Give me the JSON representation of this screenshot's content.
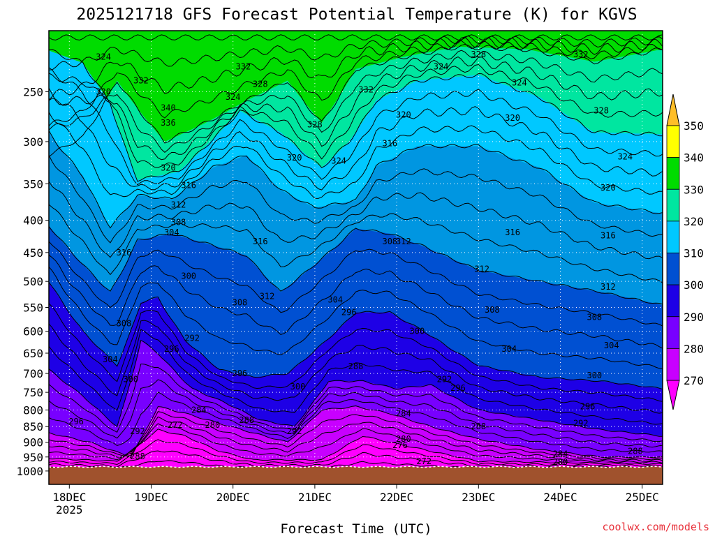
{
  "chart_data": {
    "type": "heatmap",
    "title": "2025121718 GFS Forecast Potential Temperature (K) for KGVS",
    "xlabel": "Forecast Time (UTC)",
    "ylabel": "",
    "x_ticks": [
      {
        "label": "18DEC",
        "sub": "2025",
        "t": 6
      },
      {
        "label": "19DEC",
        "sub": "",
        "t": 30
      },
      {
        "label": "20DEC",
        "sub": "",
        "t": 54
      },
      {
        "label": "21DEC",
        "sub": "",
        "t": 78
      },
      {
        "label": "22DEC",
        "sub": "",
        "t": 102
      },
      {
        "label": "23DEC",
        "sub": "",
        "t": 126
      },
      {
        "label": "24DEC",
        "sub": "",
        "t": 150
      },
      {
        "label": "25DEC",
        "sub": "",
        "t": 174
      }
    ],
    "x_range_hours": [
      0,
      180
    ],
    "y_ticks": [
      "250",
      "300",
      "350",
      "400",
      "450",
      "500",
      "550",
      "600",
      "650",
      "700",
      "750",
      "800",
      "850",
      "900",
      "950",
      "1000"
    ],
    "y_range_hPa": [
      200,
      1050
    ],
    "y_scale": "log-pressure",
    "grid": true,
    "units": "K",
    "colorbar": {
      "placement": "right",
      "levels": [
        "270",
        "280",
        "290",
        "300",
        "310",
        "320",
        "330",
        "340",
        "350"
      ],
      "colors": [
        "#ff00ff",
        "#c800ff",
        "#7800ff",
        "#1e00e6",
        "#0050d2",
        "#0096e1",
        "#00c8ff",
        "#00e6a0",
        "#00dc00",
        "#a0e632",
        "#ffff00",
        "#ffbe28"
      ]
    },
    "series": [
      {
        "name": "332",
        "values": [
          [
            0,
            315
          ],
          [
            10,
            295
          ],
          [
            20,
            240
          ],
          [
            34,
            300
          ],
          [
            46,
            280
          ],
          [
            58,
            258
          ],
          [
            70,
            240
          ],
          [
            80,
            280
          ],
          [
            90,
            230
          ],
          [
            104,
            220
          ],
          [
            120,
            212
          ],
          [
            140,
            214
          ],
          [
            160,
            224
          ],
          [
            180,
            214
          ]
        ]
      },
      {
        "name": "324",
        "values": [
          [
            0,
            215
          ],
          [
            10,
            225
          ],
          [
            18,
            260
          ],
          [
            26,
            345
          ],
          [
            38,
            335
          ],
          [
            46,
            305
          ],
          [
            56,
            268
          ],
          [
            68,
            290
          ],
          [
            80,
            330
          ],
          [
            88,
            300
          ],
          [
            96,
            258
          ],
          [
            108,
            240
          ],
          [
            126,
            235
          ],
          [
            144,
            255
          ],
          [
            160,
            290
          ],
          [
            180,
            292
          ]
        ]
      },
      {
        "name": "316",
        "values": [
          [
            0,
            290
          ],
          [
            10,
            340
          ],
          [
            18,
            410
          ],
          [
            26,
            365
          ],
          [
            36,
            370
          ],
          [
            48,
            330
          ],
          [
            58,
            315
          ],
          [
            68,
            358
          ],
          [
            78,
            382
          ],
          [
            90,
            372
          ],
          [
            96,
            328
          ],
          [
            108,
            305
          ],
          [
            126,
            305
          ],
          [
            144,
            330
          ],
          [
            160,
            375
          ],
          [
            180,
            390
          ]
        ]
      },
      {
        "name": "308",
        "values": [
          [
            0,
            408
          ],
          [
            10,
            470
          ],
          [
            18,
            520
          ],
          [
            26,
            430
          ],
          [
            36,
            420
          ],
          [
            48,
            438
          ],
          [
            58,
            455
          ],
          [
            68,
            520
          ],
          [
            78,
            470
          ],
          [
            90,
            412
          ],
          [
            100,
            420
          ],
          [
            110,
            440
          ],
          [
            126,
            480
          ],
          [
            144,
            500
          ],
          [
            162,
            520
          ],
          [
            180,
            545
          ]
        ]
      },
      {
        "name": "300",
        "values": [
          [
            0,
            500
          ],
          [
            10,
            600
          ],
          [
            20,
            680
          ],
          [
            27,
            540
          ],
          [
            32,
            530
          ],
          [
            40,
            620
          ],
          [
            50,
            690
          ],
          [
            60,
            710
          ],
          [
            70,
            700
          ],
          [
            80,
            630
          ],
          [
            90,
            560
          ],
          [
            100,
            560
          ],
          [
            110,
            600
          ],
          [
            126,
            680
          ],
          [
            144,
            710
          ],
          [
            162,
            720
          ],
          [
            180,
            740
          ]
        ]
      },
      {
        "name": "292",
        "values": [
          [
            0,
            690
          ],
          [
            10,
            760
          ],
          [
            20,
            850
          ],
          [
            27,
            620
          ],
          [
            32,
            650
          ],
          [
            42,
            740
          ],
          [
            52,
            780
          ],
          [
            62,
            830
          ],
          [
            72,
            850
          ],
          [
            82,
            720
          ],
          [
            92,
            720
          ],
          [
            102,
            740
          ],
          [
            112,
            730
          ],
          [
            126,
            800
          ],
          [
            144,
            830
          ],
          [
            162,
            860
          ],
          [
            180,
            880
          ]
        ]
      },
      {
        "name": "284",
        "values": [
          [
            0,
            870
          ],
          [
            12,
            900
          ],
          [
            24,
            950
          ],
          [
            32,
            790
          ],
          [
            40,
            810
          ],
          [
            50,
            840
          ],
          [
            60,
            870
          ],
          [
            70,
            900
          ],
          [
            80,
            800
          ],
          [
            90,
            790
          ],
          [
            100,
            810
          ],
          [
            112,
            850
          ],
          [
            126,
            890
          ],
          [
            144,
            925
          ],
          [
            162,
            950
          ],
          [
            180,
            950
          ]
        ]
      },
      {
        "name": "276",
        "values": [
          [
            0,
            955
          ],
          [
            20,
            965
          ],
          [
            32,
            860
          ],
          [
            40,
            880
          ],
          [
            50,
            930
          ],
          [
            60,
            960
          ],
          [
            80,
            960
          ],
          [
            92,
            880
          ],
          [
            100,
            900
          ],
          [
            112,
            930
          ],
          [
            126,
            965
          ],
          [
            180,
            975
          ]
        ]
      }
    ],
    "contour_labels": [
      {
        "text": "324",
        "t": 16,
        "p": 220
      },
      {
        "text": "320",
        "t": 16,
        "p": 250
      },
      {
        "text": "332",
        "t": 27,
        "p": 240
      },
      {
        "text": "340",
        "t": 35,
        "p": 265
      },
      {
        "text": "336",
        "t": 35,
        "p": 280
      },
      {
        "text": "332",
        "t": 57,
        "p": 228
      },
      {
        "text": "328",
        "t": 62,
        "p": 243
      },
      {
        "text": "324",
        "t": 54,
        "p": 255
      },
      {
        "text": "328",
        "t": 78,
        "p": 282
      },
      {
        "text": "320",
        "t": 72,
        "p": 318
      },
      {
        "text": "324",
        "t": 85,
        "p": 322
      },
      {
        "text": "332",
        "t": 93,
        "p": 248
      },
      {
        "text": "320",
        "t": 104,
        "p": 272
      },
      {
        "text": "316",
        "t": 100,
        "p": 302
      },
      {
        "text": "324",
        "t": 115,
        "p": 228
      },
      {
        "text": "328",
        "t": 126,
        "p": 218
      },
      {
        "text": "324",
        "t": 138,
        "p": 242
      },
      {
        "text": "332",
        "t": 156,
        "p": 218
      },
      {
        "text": "320",
        "t": 136,
        "p": 275
      },
      {
        "text": "328",
        "t": 162,
        "p": 268
      },
      {
        "text": "324",
        "t": 169,
        "p": 317
      },
      {
        "text": "320",
        "t": 164,
        "p": 355
      },
      {
        "text": "320",
        "t": 35,
        "p": 330
      },
      {
        "text": "316",
        "t": 41,
        "p": 352
      },
      {
        "text": "312",
        "t": 38,
        "p": 378
      },
      {
        "text": "308",
        "t": 38,
        "p": 403
      },
      {
        "text": "304",
        "t": 36,
        "p": 418
      },
      {
        "text": "316",
        "t": 22,
        "p": 450
      },
      {
        "text": "316",
        "t": 62,
        "p": 432
      },
      {
        "text": "308",
        "t": 100,
        "p": 432
      },
      {
        "text": "312",
        "t": 104,
        "p": 432
      },
      {
        "text": "316",
        "t": 136,
        "p": 418
      },
      {
        "text": "316",
        "t": 164,
        "p": 423
      },
      {
        "text": "312",
        "t": 127,
        "p": 478
      },
      {
        "text": "312",
        "t": 164,
        "p": 510
      },
      {
        "text": "300",
        "t": 41,
        "p": 490
      },
      {
        "text": "308",
        "t": 56,
        "p": 540
      },
      {
        "text": "312",
        "t": 64,
        "p": 528
      },
      {
        "text": "304",
        "t": 84,
        "p": 535
      },
      {
        "text": "296",
        "t": 88,
        "p": 560
      },
      {
        "text": "308",
        "t": 130,
        "p": 555
      },
      {
        "text": "308",
        "t": 160,
        "p": 570
      },
      {
        "text": "308",
        "t": 22,
        "p": 583
      },
      {
        "text": "300",
        "t": 108,
        "p": 600
      },
      {
        "text": "304",
        "t": 18,
        "p": 665
      },
      {
        "text": "292",
        "t": 42,
        "p": 615
      },
      {
        "text": "296",
        "t": 36,
        "p": 640
      },
      {
        "text": "304",
        "t": 135,
        "p": 640
      },
      {
        "text": "304",
        "t": 165,
        "p": 632
      },
      {
        "text": "296",
        "t": 56,
        "p": 700
      },
      {
        "text": "288",
        "t": 90,
        "p": 682
      },
      {
        "text": "300",
        "t": 24,
        "p": 715
      },
      {
        "text": "300",
        "t": 73,
        "p": 735
      },
      {
        "text": "292",
        "t": 116,
        "p": 715
      },
      {
        "text": "296",
        "t": 120,
        "p": 738
      },
      {
        "text": "300",
        "t": 160,
        "p": 705
      },
      {
        "text": "296",
        "t": 158,
        "p": 790
      },
      {
        "text": "292",
        "t": 156,
        "p": 840
      },
      {
        "text": "296",
        "t": 8,
        "p": 835
      },
      {
        "text": "284",
        "t": 44,
        "p": 800
      },
      {
        "text": "288",
        "t": 58,
        "p": 830
      },
      {
        "text": "284",
        "t": 104,
        "p": 810
      },
      {
        "text": "288",
        "t": 126,
        "p": 850
      },
      {
        "text": "272",
        "t": 37,
        "p": 845
      },
      {
        "text": "280",
        "t": 48,
        "p": 845
      },
      {
        "text": "292",
        "t": 26,
        "p": 865
      },
      {
        "text": "292",
        "t": 72,
        "p": 865
      },
      {
        "text": "280",
        "t": 104,
        "p": 890
      },
      {
        "text": "276",
        "t": 103,
        "p": 910
      },
      {
        "text": "288",
        "t": 26,
        "p": 948
      },
      {
        "text": "284",
        "t": 150,
        "p": 940
      },
      {
        "text": "280",
        "t": 150,
        "p": 968
      },
      {
        "text": "272",
        "t": 110,
        "p": 965
      },
      {
        "text": "288",
        "t": 172,
        "p": 930
      }
    ]
  },
  "footer": {
    "credit": "coolwx.com/models"
  }
}
